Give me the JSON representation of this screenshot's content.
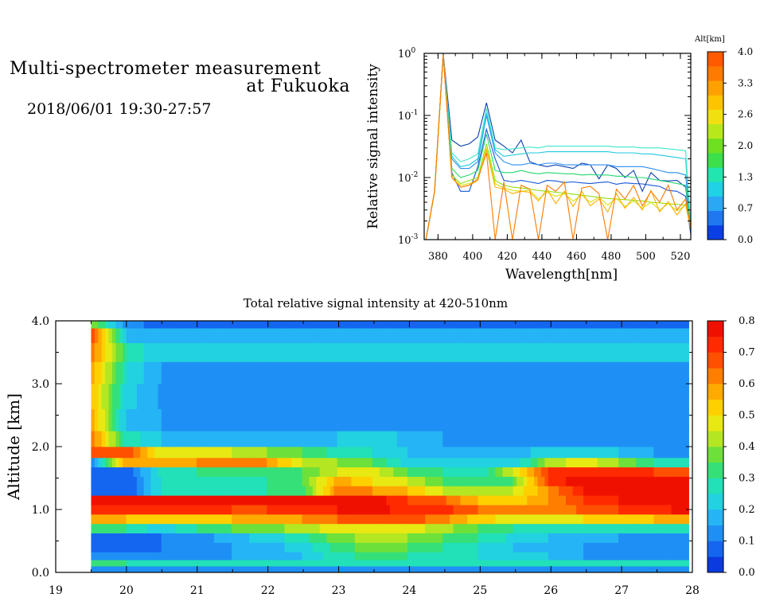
{
  "header": {
    "title_line1": "Multi-spectrometer measurement",
    "title_line2": "at Fukuoka",
    "subtitle": "2018/06/01 19:30-27:57"
  },
  "chart_data": [
    {
      "type": "line",
      "xlabel": "Wavelength[nm]",
      "ylabel": "Relative signal intensity",
      "yscale": "log",
      "xlim": [
        372,
        526
      ],
      "ylim": [
        0.001,
        1
      ],
      "x_ticks": [
        380,
        400,
        420,
        440,
        460,
        480,
        500,
        520
      ],
      "y_ticks": [
        {
          "base": "10",
          "exp": "0"
        },
        {
          "base": "10",
          "exp": "-1"
        },
        {
          "base": "10",
          "exp": "-2"
        },
        {
          "base": "10",
          "exp": "-3"
        }
      ],
      "colorbar": {
        "label": "Alt[km]",
        "ticks": [
          "4.0",
          "3.3",
          "2.6",
          "2.0",
          "1.3",
          "0.7",
          "0.0"
        ],
        "colors": [
          "#0a3fe6",
          "#1f78f0",
          "#2aa8f5",
          "#1fd2e6",
          "#22e6b0",
          "#3be04a",
          "#6ee020",
          "#b8e81a",
          "#f0e010",
          "#ffc400",
          "#ffa000",
          "#ff7a00",
          "#ff5a00"
        ]
      },
      "x": [
        373,
        378,
        383,
        388,
        393,
        398,
        403,
        408,
        413,
        418,
        423,
        428,
        433,
        438,
        443,
        448,
        453,
        458,
        463,
        468,
        473,
        478,
        483,
        488,
        493,
        498,
        503,
        508,
        513,
        518,
        523,
        526
      ],
      "series": [
        {
          "color": "#1555d8",
          "values": [
            0.001,
            0.006,
            1.0,
            0.012,
            0.006,
            0.006,
            0.015,
            0.06,
            0.02,
            0.009,
            0.0085,
            0.009,
            0.0085,
            0.008,
            0.009,
            0.0088,
            0.0083,
            0.0085,
            0.0082,
            0.008,
            0.0083,
            0.0085,
            0.0078,
            0.0082,
            0.008,
            0.0079,
            0.0075,
            0.0072,
            0.0062,
            0.006,
            0.005,
            0.0012
          ]
        },
        {
          "color": "#0b3fb0",
          "values": [
            0.001,
            0.006,
            1.0,
            0.04,
            0.032,
            0.035,
            0.045,
            0.16,
            0.04,
            0.032,
            0.025,
            0.04,
            0.018,
            0.016,
            0.015,
            0.016,
            0.015,
            0.014,
            0.017,
            0.016,
            0.0095,
            0.016,
            0.014,
            0.01,
            0.013,
            0.006,
            0.012,
            0.009,
            0.0088,
            0.009,
            0.007,
            0.0015
          ]
        },
        {
          "color": "#2a8ef0",
          "values": [
            0.001,
            0.006,
            0.95,
            0.02,
            0.014,
            0.014,
            0.018,
            0.1,
            0.025,
            0.018,
            0.016,
            0.016,
            0.017,
            0.016,
            0.017,
            0.017,
            0.016,
            0.016,
            0.016,
            0.016,
            0.016,
            0.016,
            0.015,
            0.015,
            0.015,
            0.015,
            0.014,
            0.013,
            0.012,
            0.012,
            0.011,
            0.0015
          ]
        },
        {
          "color": "#1fc8e0",
          "values": [
            0.001,
            0.006,
            0.95,
            0.022,
            0.015,
            0.016,
            0.02,
            0.11,
            0.028,
            0.022,
            0.023,
            0.024,
            0.025,
            0.025,
            0.026,
            0.026,
            0.026,
            0.026,
            0.026,
            0.026,
            0.026,
            0.026,
            0.025,
            0.025,
            0.025,
            0.024,
            0.024,
            0.023,
            0.022,
            0.021,
            0.02,
            0.0015
          ]
        },
        {
          "color": "#3fe6c8",
          "values": [
            0.001,
            0.006,
            0.95,
            0.025,
            0.018,
            0.02,
            0.024,
            0.13,
            0.03,
            0.028,
            0.029,
            0.03,
            0.031,
            0.03,
            0.032,
            0.032,
            0.032,
            0.032,
            0.032,
            0.032,
            0.032,
            0.032,
            0.031,
            0.031,
            0.031,
            0.03,
            0.03,
            0.03,
            0.029,
            0.028,
            0.027,
            0.0015
          ]
        },
        {
          "color": "#22d870",
          "values": [
            0.001,
            0.006,
            0.95,
            0.014,
            0.01,
            0.011,
            0.013,
            0.05,
            0.013,
            0.012,
            0.012,
            0.013,
            0.012,
            0.0115,
            0.012,
            0.0118,
            0.0115,
            0.0115,
            0.011,
            0.0112,
            0.011,
            0.011,
            0.0105,
            0.0105,
            0.01,
            0.01,
            0.0095,
            0.009,
            0.0085,
            0.008,
            0.0075,
            0.0015
          ]
        },
        {
          "color": "#8ee010",
          "values": [
            0.001,
            0.006,
            0.95,
            0.011,
            0.008,
            0.009,
            0.01,
            0.035,
            0.009,
            0.0075,
            0.007,
            0.0068,
            0.0065,
            0.0062,
            0.006,
            0.0058,
            0.0056,
            0.0054,
            0.0052,
            0.005,
            0.0048,
            0.0046,
            0.0045,
            0.0044,
            0.0043,
            0.0042,
            0.004,
            0.0039,
            0.0038,
            0.0037,
            0.0036,
            0.0015
          ]
        },
        {
          "color": "#d8e010",
          "values": [
            0.001,
            0.006,
            0.95,
            0.01,
            0.0075,
            0.008,
            0.009,
            0.03,
            0.008,
            0.0068,
            0.0062,
            0.006,
            0.0062,
            0.0045,
            0.0058,
            0.005,
            0.0055,
            0.0042,
            0.0052,
            0.004,
            0.0048,
            0.0036,
            0.0046,
            0.0034,
            0.0042,
            0.0032,
            0.004,
            0.003,
            0.0038,
            0.0029,
            0.0036,
            0.0015
          ]
        },
        {
          "color": "#ffb000",
          "values": [
            0.001,
            0.006,
            0.95,
            0.01,
            0.007,
            0.0075,
            0.009,
            0.028,
            0.007,
            0.0065,
            0.0055,
            0.006,
            0.0058,
            0.0042,
            0.0065,
            0.0038,
            0.006,
            0.0034,
            0.006,
            0.0035,
            0.0045,
            0.0028,
            0.0055,
            0.0032,
            0.0048,
            0.003,
            0.0062,
            0.0028,
            0.0041,
            0.0025,
            0.0038,
            0.0015
          ]
        },
        {
          "color": "#ff7a00",
          "values": [
            0.001,
            0.006,
            0.95,
            0.01,
            0.007,
            0.0075,
            0.0095,
            0.025,
            0.001,
            0.0085,
            0.001,
            0.0075,
            0.0065,
            0.001,
            0.0075,
            0.006,
            0.0085,
            0.001,
            0.0068,
            0.0072,
            0.0055,
            0.001,
            0.0065,
            0.0045,
            0.0075,
            0.0035,
            0.006,
            0.004,
            0.0075,
            0.003,
            0.0045,
            0.0015
          ]
        }
      ]
    },
    {
      "type": "heatmap",
      "title": "Total relative signal intensity at 420-510nm",
      "ylabel": "Altitude [km]",
      "xlim": [
        19,
        28
      ],
      "ylim": [
        0,
        4
      ],
      "x_ticks": [
        "19",
        "20",
        "21",
        "22",
        "23",
        "24",
        "25",
        "26",
        "27",
        "28"
      ],
      "y_ticks": [
        "0.0",
        "1.0",
        "2.0",
        "3.0",
        "4.0"
      ],
      "colorbar": {
        "ticks": [
          "0.8",
          "0.7",
          "0.6",
          "0.5",
          "0.4",
          "0.3",
          "0.2",
          "0.1",
          "0.0"
        ],
        "range": [
          0,
          0.8
        ],
        "colors": [
          "#0a3ae0",
          "#1466f0",
          "#1e90f5",
          "#25b4f5",
          "#22d2e0",
          "#22e0b8",
          "#35e078",
          "#6ee03a",
          "#b4e622",
          "#e8e812",
          "#ffd000",
          "#ffaa00",
          "#ff7e00",
          "#ff5000",
          "#ff2a00",
          "#f01000"
        ]
      },
      "time_range": [
        19.5,
        27.95
      ],
      "altitude_layers": [
        {
          "altitude": 0.05,
          "values": [
            0.1,
            0.1,
            0.1,
            0.1,
            0.1,
            0.1,
            0.1,
            0.1,
            0.1,
            0.1,
            0.1,
            0.1,
            0.1,
            0.1,
            0.1,
            0.1,
            0.1,
            0.1
          ]
        },
        {
          "altitude": 0.15,
          "values": [
            0.35,
            0.3,
            0.3,
            0.3,
            0.3,
            0.3,
            0.3,
            0.3,
            0.3,
            0.3,
            0.3,
            0.3,
            0.3,
            0.3,
            0.3,
            0.3,
            0.3,
            0.3
          ]
        },
        {
          "altitude": 0.25,
          "values": [
            0.12,
            0.1,
            0.12,
            0.15,
            0.15,
            0.18,
            0.2,
            0.28,
            0.32,
            0.3,
            0.28,
            0.25,
            0.2,
            0.2,
            0.15,
            0.12,
            0.12,
            0.1
          ]
        },
        {
          "altitude": 0.4,
          "values": [
            0.08,
            0.08,
            0.1,
            0.12,
            0.15,
            0.18,
            0.22,
            0.32,
            0.38,
            0.35,
            0.3,
            0.25,
            0.2,
            0.17,
            0.15,
            0.12,
            0.1,
            0.1
          ]
        },
        {
          "altitude": 0.55,
          "values": [
            0.1,
            0.08,
            0.1,
            0.12,
            0.18,
            0.22,
            0.28,
            0.38,
            0.42,
            0.4,
            0.35,
            0.3,
            0.24,
            0.2,
            0.18,
            0.15,
            0.13,
            0.12
          ]
        },
        {
          "altitude": 0.7,
          "values": [
            0.35,
            0.3,
            0.22,
            0.3,
            0.35,
            0.38,
            0.42,
            0.48,
            0.5,
            0.48,
            0.42,
            0.35,
            0.3,
            0.28,
            0.26,
            0.25,
            0.25,
            0.3
          ]
        },
        {
          "altitude": 0.85,
          "values": [
            0.55,
            0.55,
            0.5,
            0.52,
            0.55,
            0.55,
            0.6,
            0.65,
            0.7,
            0.68,
            0.62,
            0.52,
            0.48,
            0.48,
            0.5,
            0.5,
            0.55,
            0.6
          ]
        },
        {
          "altitude": 1.0,
          "values": [
            0.72,
            0.72,
            0.72,
            0.72,
            0.7,
            0.7,
            0.72,
            0.75,
            0.76,
            0.74,
            0.72,
            0.65,
            0.6,
            0.62,
            0.66,
            0.7,
            0.74,
            0.76
          ]
        },
        {
          "altitude": 1.15,
          "values": [
            0.78,
            0.78,
            0.8,
            0.8,
            0.8,
            0.8,
            0.8,
            0.8,
            0.78,
            0.7,
            0.66,
            0.55,
            0.52,
            0.6,
            0.7,
            0.75,
            0.78,
            0.78
          ]
        },
        {
          "altitude": 1.3,
          "values": [
            0.05,
            0.05,
            0.25,
            0.28,
            0.3,
            0.3,
            0.32,
            0.62,
            0.6,
            0.55,
            0.45,
            0.42,
            0.45,
            0.6,
            0.75,
            0.8,
            0.8,
            0.8
          ]
        },
        {
          "altitude": 1.45,
          "values": [
            0.05,
            0.05,
            0.25,
            0.28,
            0.3,
            0.3,
            0.35,
            0.58,
            0.5,
            0.45,
            0.35,
            0.3,
            0.35,
            0.7,
            0.8,
            0.8,
            0.8,
            0.8
          ]
        },
        {
          "altitude": 1.6,
          "values": [
            0.05,
            0.05,
            0.28,
            0.3,
            0.32,
            0.34,
            0.35,
            0.45,
            0.48,
            0.35,
            0.3,
            0.25,
            0.45,
            0.7,
            0.72,
            0.72,
            0.7,
            0.7
          ]
        },
        {
          "altitude": 1.75,
          "values": [
            0.1,
            0.6,
            0.6,
            0.6,
            0.62,
            0.6,
            0.45,
            0.4,
            0.35,
            0.22,
            0.2,
            0.2,
            0.2,
            0.42,
            0.48,
            0.4,
            0.3,
            0.3
          ]
        },
        {
          "altitude": 1.9,
          "values": [
            0.7,
            0.7,
            0.45,
            0.45,
            0.45,
            0.4,
            0.35,
            0.28,
            0.25,
            0.2,
            0.18,
            0.18,
            0.18,
            0.22,
            0.22,
            0.2,
            0.15,
            0.15
          ]
        },
        {
          "altitude": 2.1,
          "values": [
            0.65,
            0.28,
            0.2,
            0.18,
            0.18,
            0.18,
            0.18,
            0.2,
            0.25,
            0.18,
            0.15,
            0.15,
            0.14,
            0.14,
            0.13,
            0.13,
            0.12,
            0.12
          ]
        },
        {
          "altitude": 2.4,
          "values": [
            0.6,
            0.18,
            0.15,
            0.15,
            0.15,
            0.15,
            0.15,
            0.14,
            0.14,
            0.13,
            0.13,
            0.13,
            0.12,
            0.12,
            0.12,
            0.12,
            0.12,
            0.12
          ]
        },
        {
          "altitude": 2.8,
          "values": [
            0.55,
            0.22,
            0.14,
            0.14,
            0.12,
            0.14,
            0.12,
            0.12,
            0.12,
            0.12,
            0.12,
            0.12,
            0.12,
            0.12,
            0.12,
            0.12,
            0.12,
            0.12
          ]
        },
        {
          "altitude": 3.2,
          "values": [
            0.6,
            0.25,
            0.15,
            0.15,
            0.14,
            0.15,
            0.14,
            0.14,
            0.13,
            0.14,
            0.14,
            0.13,
            0.14,
            0.13,
            0.14,
            0.14,
            0.14,
            0.13
          ]
        },
        {
          "altitude": 3.5,
          "values": [
            0.65,
            0.3,
            0.2,
            0.22,
            0.2,
            0.22,
            0.22,
            0.2,
            0.2,
            0.22,
            0.2,
            0.2,
            0.2,
            0.2,
            0.22,
            0.2,
            0.2,
            0.2
          ]
        },
        {
          "altitude": 3.8,
          "values": [
            0.7,
            0.2,
            0.16,
            0.18,
            0.16,
            0.17,
            0.16,
            0.16,
            0.16,
            0.17,
            0.16,
            0.17,
            0.16,
            0.17,
            0.17,
            0.16,
            0.16,
            0.16
          ]
        },
        {
          "altitude": 3.97,
          "values": [
            0.4,
            0.12,
            0.08,
            0.1,
            0.08,
            0.08,
            0.1,
            0.08,
            0.08,
            0.08,
            0.1,
            0.08,
            0.08,
            0.08,
            0.1,
            0.08,
            0.08,
            0.08
          ]
        }
      ]
    }
  ]
}
